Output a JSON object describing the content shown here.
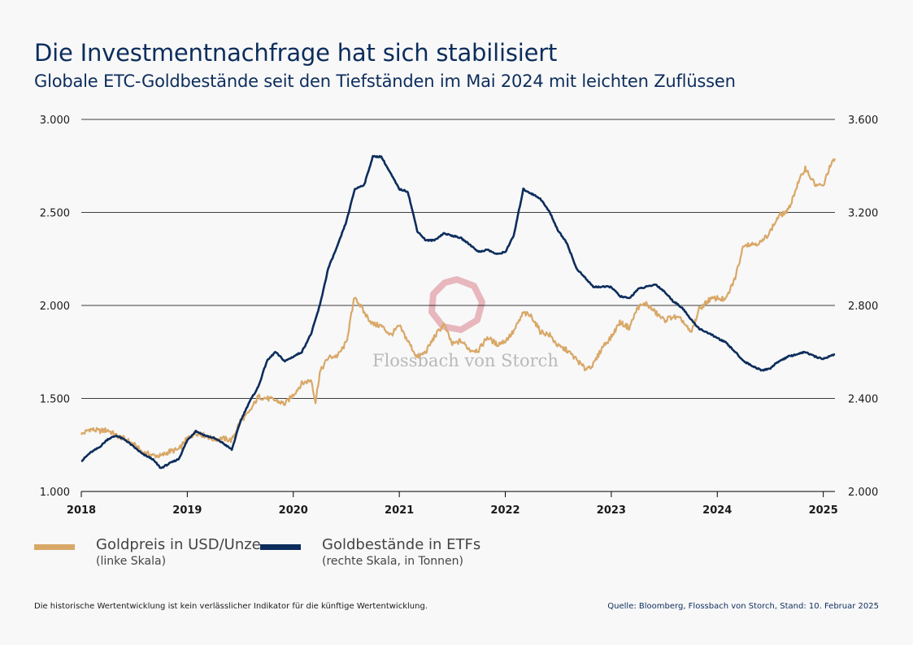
{
  "header": {
    "title": "Die Investmentnachfrage hat sich stabilisiert",
    "subtitle": "Globale ETC-Goldbestände seit den Tiefständen im Mai 2024 mit leichten Zuflüssen"
  },
  "watermark": {
    "text": "Flossbach von Storch"
  },
  "legend": [
    {
      "label": "Goldpreis in USD/Unze",
      "note": "(linke Skala)",
      "color": "#d9a868"
    },
    {
      "label": "Goldbestände in ETFs",
      "note": "(rechte Skala, in Tonnen)",
      "color": "#0c2d5c"
    }
  ],
  "footer": {
    "disclaimer": "Die historische Wertentwicklung ist kein verlässlicher Indikator für die künftige Wertentwicklung.",
    "source": "Quelle: Bloomberg, Flossbach von Storch, Stand: 10. Februar 2025"
  },
  "chart_data": {
    "type": "line",
    "title": "Die Investmentnachfrage hat sich stabilisiert",
    "x_range": [
      2018.0,
      2025.11
    ],
    "x_ticks": [
      "2018",
      "2019",
      "2020",
      "2021",
      "2022",
      "2023",
      "2024",
      "2025"
    ],
    "y_left": {
      "ticks": [
        "1.000",
        "1.500",
        "2.000",
        "2.500",
        "3.000"
      ],
      "range": [
        1000,
        3000
      ]
    },
    "y_right": {
      "ticks": [
        "2.000",
        "2.400",
        "2.800",
        "3.200",
        "3.600"
      ],
      "range": [
        2000,
        3600
      ]
    },
    "grid": true,
    "series": [
      {
        "name": "Goldpreis in USD/Unze",
        "axis": "left",
        "color": "#d9a868",
        "points": [
          [
            2018.0,
            1305
          ],
          [
            2018.08,
            1335
          ],
          [
            2018.17,
            1325
          ],
          [
            2018.25,
            1330
          ],
          [
            2018.33,
            1300
          ],
          [
            2018.42,
            1280
          ],
          [
            2018.5,
            1250
          ],
          [
            2018.58,
            1210
          ],
          [
            2018.67,
            1195
          ],
          [
            2018.75,
            1190
          ],
          [
            2018.83,
            1215
          ],
          [
            2018.92,
            1225
          ],
          [
            2019.0,
            1285
          ],
          [
            2019.08,
            1315
          ],
          [
            2019.17,
            1300
          ],
          [
            2019.25,
            1280
          ],
          [
            2019.33,
            1285
          ],
          [
            2019.42,
            1275
          ],
          [
            2019.5,
            1380
          ],
          [
            2019.58,
            1420
          ],
          [
            2019.67,
            1510
          ],
          [
            2019.75,
            1500
          ],
          [
            2019.83,
            1490
          ],
          [
            2019.92,
            1470
          ],
          [
            2020.0,
            1520
          ],
          [
            2020.08,
            1580
          ],
          [
            2020.17,
            1600
          ],
          [
            2020.21,
            1480
          ],
          [
            2020.25,
            1640
          ],
          [
            2020.33,
            1720
          ],
          [
            2020.42,
            1730
          ],
          [
            2020.5,
            1800
          ],
          [
            2020.58,
            2050
          ],
          [
            2020.67,
            1960
          ],
          [
            2020.75,
            1900
          ],
          [
            2020.83,
            1890
          ],
          [
            2020.92,
            1840
          ],
          [
            2021.0,
            1890
          ],
          [
            2021.08,
            1810
          ],
          [
            2021.17,
            1720
          ],
          [
            2021.25,
            1750
          ],
          [
            2021.33,
            1830
          ],
          [
            2021.42,
            1900
          ],
          [
            2021.5,
            1790
          ],
          [
            2021.58,
            1810
          ],
          [
            2021.67,
            1760
          ],
          [
            2021.75,
            1760
          ],
          [
            2021.83,
            1830
          ],
          [
            2021.92,
            1790
          ],
          [
            2022.0,
            1810
          ],
          [
            2022.08,
            1860
          ],
          [
            2022.17,
            1960
          ],
          [
            2022.25,
            1940
          ],
          [
            2022.33,
            1860
          ],
          [
            2022.42,
            1840
          ],
          [
            2022.5,
            1780
          ],
          [
            2022.58,
            1760
          ],
          [
            2022.67,
            1710
          ],
          [
            2022.75,
            1660
          ],
          [
            2022.83,
            1680
          ],
          [
            2022.92,
            1780
          ],
          [
            2023.0,
            1830
          ],
          [
            2023.08,
            1910
          ],
          [
            2023.17,
            1880
          ],
          [
            2023.25,
            1990
          ],
          [
            2023.33,
            2010
          ],
          [
            2023.42,
            1960
          ],
          [
            2023.5,
            1920
          ],
          [
            2023.58,
            1940
          ],
          [
            2023.67,
            1920
          ],
          [
            2023.75,
            1850
          ],
          [
            2023.83,
            1980
          ],
          [
            2023.92,
            2030
          ],
          [
            2024.0,
            2040
          ],
          [
            2024.08,
            2030
          ],
          [
            2024.17,
            2150
          ],
          [
            2024.25,
            2330
          ],
          [
            2024.33,
            2330
          ],
          [
            2024.42,
            2340
          ],
          [
            2024.5,
            2400
          ],
          [
            2024.58,
            2480
          ],
          [
            2024.67,
            2510
          ],
          [
            2024.75,
            2640
          ],
          [
            2024.83,
            2740
          ],
          [
            2024.92,
            2650
          ],
          [
            2025.0,
            2640
          ],
          [
            2025.05,
            2730
          ],
          [
            2025.11,
            2790
          ]
        ]
      },
      {
        "name": "Goldbestände in ETFs",
        "axis": "right",
        "color": "#0c2d5c",
        "points": [
          [
            2018.0,
            2130
          ],
          [
            2018.08,
            2165
          ],
          [
            2018.17,
            2190
          ],
          [
            2018.25,
            2225
          ],
          [
            2018.33,
            2240
          ],
          [
            2018.42,
            2220
          ],
          [
            2018.5,
            2190
          ],
          [
            2018.58,
            2160
          ],
          [
            2018.67,
            2140
          ],
          [
            2018.75,
            2100
          ],
          [
            2018.83,
            2120
          ],
          [
            2018.92,
            2140
          ],
          [
            2019.0,
            2220
          ],
          [
            2019.08,
            2260
          ],
          [
            2019.17,
            2240
          ],
          [
            2019.25,
            2230
          ],
          [
            2019.33,
            2210
          ],
          [
            2019.42,
            2180
          ],
          [
            2019.5,
            2300
          ],
          [
            2019.58,
            2380
          ],
          [
            2019.67,
            2450
          ],
          [
            2019.75,
            2560
          ],
          [
            2019.83,
            2600
          ],
          [
            2019.92,
            2560
          ],
          [
            2020.0,
            2580
          ],
          [
            2020.08,
            2600
          ],
          [
            2020.17,
            2680
          ],
          [
            2020.25,
            2800
          ],
          [
            2020.33,
            2960
          ],
          [
            2020.42,
            3060
          ],
          [
            2020.5,
            3160
          ],
          [
            2020.58,
            3300
          ],
          [
            2020.67,
            3320
          ],
          [
            2020.75,
            3440
          ],
          [
            2020.83,
            3440
          ],
          [
            2021.0,
            3300
          ],
          [
            2021.08,
            3290
          ],
          [
            2021.17,
            3120
          ],
          [
            2021.25,
            3080
          ],
          [
            2021.33,
            3080
          ],
          [
            2021.42,
            3110
          ],
          [
            2021.5,
            3100
          ],
          [
            2021.58,
            3090
          ],
          [
            2021.67,
            3060
          ],
          [
            2021.75,
            3030
          ],
          [
            2021.83,
            3040
          ],
          [
            2021.92,
            3020
          ],
          [
            2022.0,
            3030
          ],
          [
            2022.08,
            3100
          ],
          [
            2022.17,
            3300
          ],
          [
            2022.25,
            3280
          ],
          [
            2022.33,
            3260
          ],
          [
            2022.42,
            3200
          ],
          [
            2022.5,
            3120
          ],
          [
            2022.58,
            3070
          ],
          [
            2022.67,
            2960
          ],
          [
            2022.75,
            2920
          ],
          [
            2022.83,
            2880
          ],
          [
            2022.92,
            2880
          ],
          [
            2023.0,
            2880
          ],
          [
            2023.08,
            2840
          ],
          [
            2023.17,
            2830
          ],
          [
            2023.25,
            2870
          ],
          [
            2023.33,
            2880
          ],
          [
            2023.42,
            2890
          ],
          [
            2023.5,
            2860
          ],
          [
            2023.58,
            2820
          ],
          [
            2023.67,
            2790
          ],
          [
            2023.75,
            2740
          ],
          [
            2023.83,
            2700
          ],
          [
            2023.92,
            2680
          ],
          [
            2024.0,
            2660
          ],
          [
            2024.08,
            2640
          ],
          [
            2024.17,
            2600
          ],
          [
            2024.25,
            2560
          ],
          [
            2024.33,
            2540
          ],
          [
            2024.42,
            2520
          ],
          [
            2024.5,
            2530
          ],
          [
            2024.58,
            2560
          ],
          [
            2024.67,
            2580
          ],
          [
            2024.75,
            2590
          ],
          [
            2024.83,
            2600
          ],
          [
            2024.92,
            2580
          ],
          [
            2025.0,
            2570
          ],
          [
            2025.05,
            2580
          ],
          [
            2025.11,
            2590
          ]
        ]
      }
    ]
  }
}
